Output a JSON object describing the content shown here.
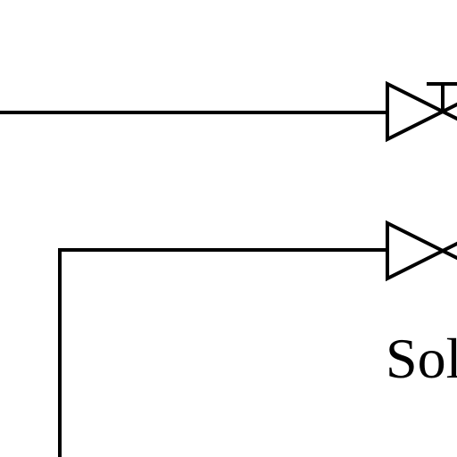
{
  "diagram": {
    "line_color": "#000000",
    "background_color": "#ffffff",
    "label": "Sol",
    "symbols": [
      {
        "kind": "globe-valve-with-stem",
        "name": "upper-valve"
      },
      {
        "kind": "globe-valve",
        "name": "lower-valve"
      }
    ]
  }
}
